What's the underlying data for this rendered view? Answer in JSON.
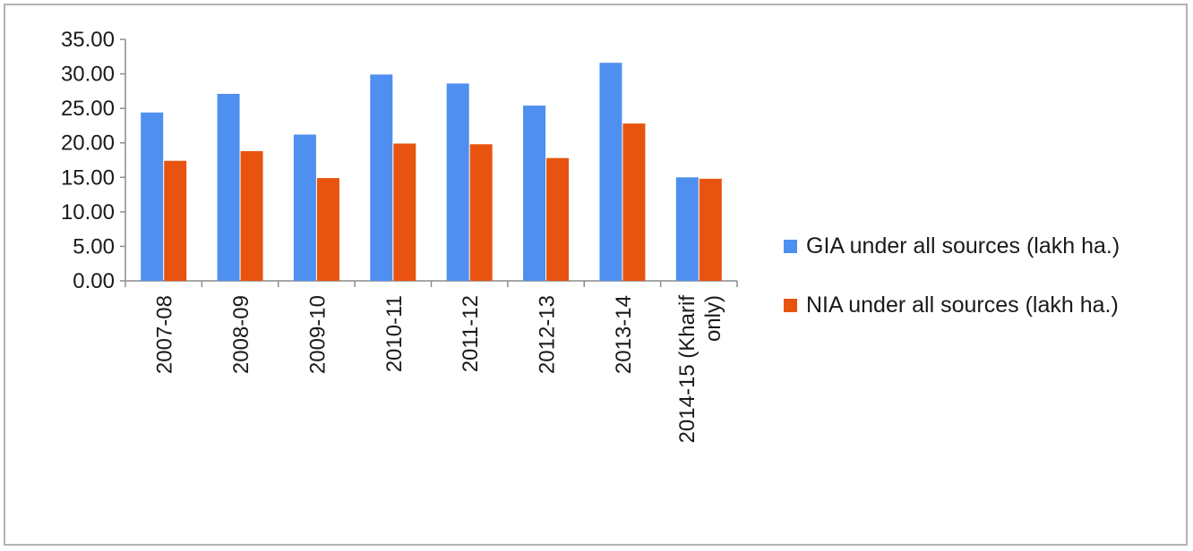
{
  "chart_data": {
    "type": "bar",
    "title": "",
    "xlabel": "",
    "ylabel": "",
    "categories": [
      "2007-08",
      "2008-09",
      "2009-10",
      "2010-11",
      "2011-12",
      "2012-13",
      "2013-14",
      "2014-15 (Kharif only)"
    ],
    "category_lines": [
      [
        "2007-08"
      ],
      [
        "2008-09"
      ],
      [
        "2009-10"
      ],
      [
        "2010-11"
      ],
      [
        "2011-12"
      ],
      [
        "2012-13"
      ],
      [
        "2013-14"
      ],
      [
        "2014-15 (Kharif",
        "only)"
      ]
    ],
    "series": [
      {
        "name": "GIA under all sources (lakh ha.)",
        "color": "#4f8ff0",
        "values": [
          24.4,
          27.1,
          21.2,
          29.9,
          28.6,
          25.4,
          31.6,
          15.0
        ]
      },
      {
        "name": "NIA under all sources (lakh ha.)",
        "color": "#e8540f",
        "values": [
          17.4,
          18.8,
          14.9,
          19.9,
          19.8,
          17.8,
          22.8,
          14.8
        ]
      }
    ],
    "ylim": [
      0,
      35
    ],
    "yticks": [
      "0.00",
      "5.00",
      "10.00",
      "15.00",
      "20.00",
      "25.00",
      "30.00",
      "35.00"
    ],
    "grid": false,
    "legend_position": "right"
  }
}
